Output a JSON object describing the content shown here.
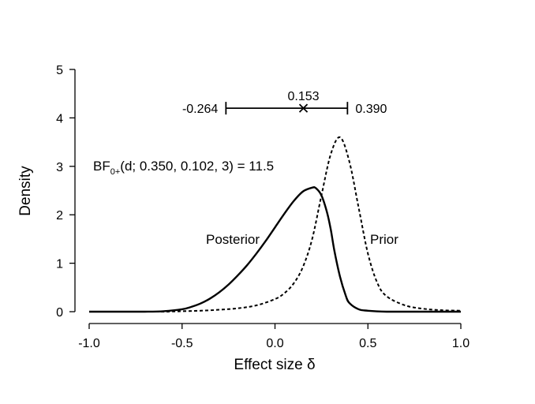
{
  "chart_data": {
    "type": "line",
    "xlabel": "Effect size δ",
    "ylabel": "Density",
    "xlim": [
      -1.0,
      1.0
    ],
    "ylim": [
      0,
      5
    ],
    "x_ticks": [
      -1.0,
      -0.5,
      0.0,
      0.5,
      1.0
    ],
    "x_tick_labels": [
      "-1.0",
      "-0.5",
      "0.0",
      "0.5",
      "1.0"
    ],
    "y_ticks": [
      0,
      1,
      2,
      3,
      4,
      5
    ],
    "y_tick_labels": [
      "0",
      "1",
      "2",
      "3",
      "4",
      "5"
    ],
    "grid": false,
    "series": [
      {
        "name": "Posterior",
        "style": "solid",
        "x": [
          -1.0,
          -0.9,
          -0.8,
          -0.7,
          -0.6,
          -0.5,
          -0.45,
          -0.4,
          -0.35,
          -0.3,
          -0.25,
          -0.2,
          -0.15,
          -0.1,
          -0.05,
          0.0,
          0.05,
          0.1,
          0.15,
          0.2,
          0.22,
          0.25,
          0.28,
          0.3,
          0.32,
          0.35,
          0.38,
          0.4,
          0.45,
          0.5,
          0.6,
          0.7,
          0.8,
          0.9,
          1.0
        ],
        "values": [
          0.0,
          0.0,
          0.0,
          0.0,
          0.01,
          0.05,
          0.1,
          0.17,
          0.27,
          0.4,
          0.56,
          0.75,
          0.96,
          1.2,
          1.46,
          1.74,
          2.02,
          2.28,
          2.48,
          2.56,
          2.55,
          2.4,
          2.05,
          1.7,
          1.25,
          0.72,
          0.34,
          0.18,
          0.05,
          0.02,
          0.0,
          0.0,
          0.0,
          0.0,
          0.0
        ]
      },
      {
        "name": "Prior",
        "style": "dashed",
        "x": [
          -1.0,
          -0.8,
          -0.6,
          -0.5,
          -0.4,
          -0.3,
          -0.2,
          -0.1,
          0.0,
          0.05,
          0.1,
          0.15,
          0.2,
          0.25,
          0.3,
          0.35,
          0.4,
          0.45,
          0.5,
          0.55,
          0.6,
          0.7,
          0.8,
          0.9,
          1.0
        ],
        "values": [
          0.0,
          0.0,
          0.0,
          0.01,
          0.02,
          0.04,
          0.07,
          0.13,
          0.26,
          0.38,
          0.58,
          0.92,
          1.5,
          2.4,
          3.25,
          3.6,
          3.1,
          2.15,
          1.2,
          0.6,
          0.32,
          0.13,
          0.06,
          0.03,
          0.02
        ]
      }
    ],
    "annotations": {
      "bf_main": "BF",
      "bf_sub": "0+",
      "bf_rest": "(d; 0.350, 0.102, 3) = 11.5",
      "posterior_label": "Posterior",
      "prior_label": "Prior"
    },
    "credible_interval": {
      "lower": -0.264,
      "upper": 0.39,
      "median": 0.153,
      "lower_label": "-0.264",
      "upper_label": "0.390",
      "median_label": "0.153",
      "y": 4.2
    }
  }
}
